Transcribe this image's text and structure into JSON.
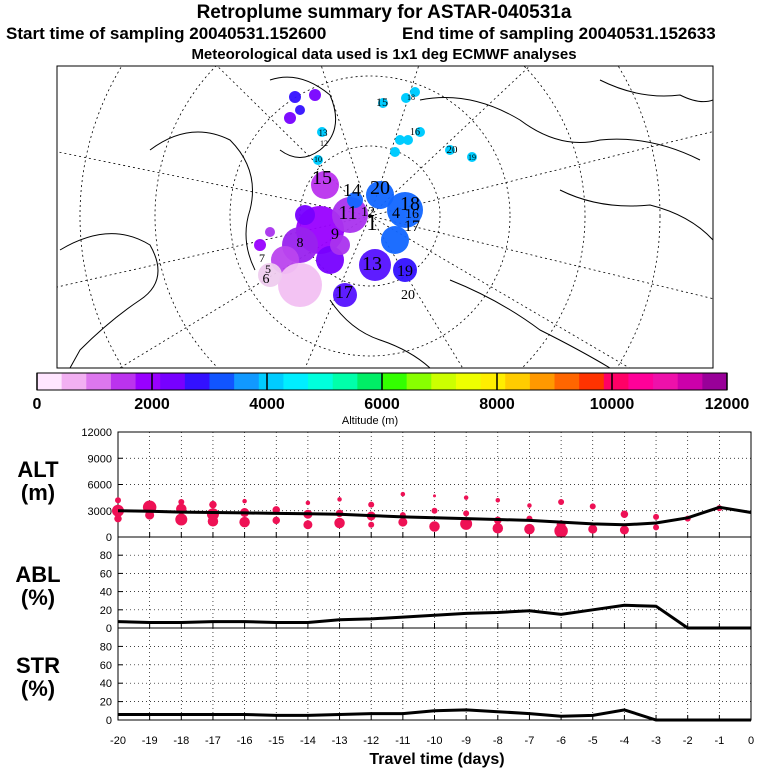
{
  "header": {
    "title": "Retroplume summary for ASTAR-040531a",
    "start_label": "Start time of sampling 20040531.152600",
    "end_label": "End time of sampling 20040531.152633",
    "met_label": "Meteorological data used is 1x1 deg ECMWF analyses"
  },
  "colorbar": {
    "label": "Altitude (m)",
    "ticks": [
      "0",
      "2000",
      "4000",
      "6000",
      "8000",
      "10000",
      "12000"
    ],
    "colors": [
      "#ffe6ff",
      "#f2b0f2",
      "#dd77ee",
      "#bb33ee",
      "#9900ff",
      "#7700ff",
      "#3311ff",
      "#1155ff",
      "#1199ff",
      "#00ccff",
      "#00eeff",
      "#00ffdd",
      "#00ffaa",
      "#00ee66",
      "#33ff00",
      "#88ff00",
      "#ccff00",
      "#eeff00",
      "#ffee00",
      "#ffcc00",
      "#ff9900",
      "#ff6600",
      "#ff3300",
      "#ff0066",
      "#ff0099",
      "#ee11aa",
      "#cc00aa",
      "#990099"
    ]
  },
  "map": {
    "labels": [
      {
        "t": "15",
        "c": "#cc33ee"
      },
      {
        "t": "14",
        "c": "#cc33ee"
      },
      {
        "t": "20",
        "c": "#1166ff"
      },
      {
        "t": "18",
        "c": "#1166ff"
      },
      {
        "t": "17",
        "c": "#1166ff"
      },
      {
        "t": "16",
        "c": "#bb44ee"
      },
      {
        "t": "11",
        "c": "#aa33ee"
      },
      {
        "t": "12",
        "c": "#1166ff"
      },
      {
        "t": "9",
        "c": "#aa33ee"
      },
      {
        "t": "8",
        "c": "#9922ee"
      },
      {
        "t": "7",
        "c": "#cc66ee"
      },
      {
        "t": "5",
        "c": "#ddaaee"
      },
      {
        "t": "6",
        "c": "#eeccee"
      },
      {
        "t": "13",
        "c": "#7700ff"
      },
      {
        "t": "17",
        "c": "#3311ff"
      },
      {
        "t": "19",
        "c": "#3311ff"
      },
      {
        "t": "20",
        "c": "#1166ff"
      },
      {
        "t": "15",
        "c": "#00ccff"
      },
      {
        "t": "18",
        "c": "#00ccff"
      },
      {
        "t": "16",
        "c": "#00ccff"
      },
      {
        "t": "20",
        "c": "#00ccff"
      },
      {
        "t": "19",
        "c": "#00ccff"
      },
      {
        "t": "13",
        "c": "#00ccff"
      },
      {
        "t": "12",
        "c": "#00ccff"
      },
      {
        "t": "10",
        "c": "#00ccff"
      },
      {
        "t": "4",
        "c": "#cc66ee"
      },
      {
        "t": "1",
        "c": "#cc66ee"
      }
    ]
  },
  "chart_data": [
    {
      "type": "scatter",
      "panel_label": "ALT",
      "panel_unit": "(m)",
      "ylim": [
        0,
        12000
      ],
      "yticks": [
        "0",
        "3000",
        "6000",
        "9000",
        "12000"
      ],
      "mean_line": {
        "x": [
          -20,
          -19,
          -18,
          -17,
          -16,
          -15,
          -14,
          -13,
          -12,
          -11,
          -10,
          -9,
          -8,
          -7,
          -6,
          -5,
          -4,
          -3,
          -2,
          -1,
          0
        ],
        "y": [
          3000,
          2950,
          2850,
          2800,
          2750,
          2700,
          2650,
          2600,
          2450,
          2300,
          2200,
          2100,
          2000,
          1900,
          1700,
          1500,
          1400,
          1600,
          2200,
          3400,
          2800
        ]
      },
      "points": [
        [
          -20,
          3000,
          8
        ],
        [
          -20,
          4200,
          4
        ],
        [
          -20,
          2100,
          5
        ],
        [
          -19,
          3400,
          9
        ],
        [
          -19,
          2500,
          6
        ],
        [
          -18,
          3200,
          7
        ],
        [
          -18,
          2000,
          8
        ],
        [
          -18,
          4000,
          4
        ],
        [
          -17,
          2600,
          8
        ],
        [
          -17,
          1800,
          7
        ],
        [
          -17,
          3700,
          5
        ],
        [
          -16,
          2800,
          6
        ],
        [
          -16,
          1700,
          7
        ],
        [
          -16,
          4100,
          3
        ],
        [
          -15,
          3100,
          5
        ],
        [
          -15,
          1900,
          5
        ],
        [
          -14,
          2600,
          6
        ],
        [
          -14,
          1400,
          6
        ],
        [
          -14,
          3900,
          3
        ],
        [
          -13,
          2700,
          5
        ],
        [
          -13,
          1600,
          7
        ],
        [
          -13,
          4300,
          3
        ],
        [
          -12,
          2400,
          6
        ],
        [
          -12,
          1400,
          4
        ],
        [
          -12,
          3700,
          4
        ],
        [
          -11,
          1700,
          6
        ],
        [
          -11,
          4900,
          3
        ],
        [
          -11,
          2500,
          4
        ],
        [
          -10,
          1200,
          7
        ],
        [
          -10,
          4700,
          2
        ],
        [
          -10,
          3000,
          4
        ],
        [
          -9,
          1500,
          8
        ],
        [
          -9,
          4500,
          3
        ],
        [
          -9,
          2700,
          4
        ],
        [
          -8,
          1000,
          7
        ],
        [
          -8,
          4200,
          3
        ],
        [
          -8,
          1900,
          5
        ],
        [
          -7,
          900,
          7
        ],
        [
          -7,
          3600,
          3
        ],
        [
          -7,
          2100,
          4
        ],
        [
          -6,
          700,
          9
        ],
        [
          -6,
          4000,
          4
        ],
        [
          -6,
          1400,
          6
        ],
        [
          -5,
          900,
          6
        ],
        [
          -5,
          3500,
          4
        ],
        [
          -4,
          800,
          6
        ],
        [
          -4,
          2600,
          5
        ],
        [
          -3,
          1100,
          4
        ],
        [
          -3,
          2300,
          4
        ],
        [
          -2,
          2100,
          4
        ],
        [
          -1,
          3300,
          4
        ]
      ],
      "point_color": "#ee1155"
    },
    {
      "type": "line",
      "panel_label": "ABL",
      "panel_unit": "(%)",
      "ylim": [
        0,
        100
      ],
      "yticks": [
        "0",
        "20",
        "40",
        "60",
        "80"
      ],
      "x": [
        -20,
        -19,
        -18,
        -17,
        -16,
        -15,
        -14,
        -13,
        -12,
        -11,
        -10,
        -9,
        -8,
        -7,
        -6,
        -5,
        -4,
        -3,
        -2,
        -1,
        0
      ],
      "y": [
        7,
        6,
        6,
        7,
        7,
        6,
        6,
        9,
        10,
        12,
        14,
        16,
        17,
        19,
        15,
        20,
        25,
        24,
        0,
        0,
        0
      ]
    },
    {
      "type": "line",
      "panel_label": "STR",
      "panel_unit": "(%)",
      "ylim": [
        0,
        100
      ],
      "yticks": [
        "0",
        "20",
        "40",
        "60",
        "80"
      ],
      "x": [
        -20,
        -19,
        -18,
        -17,
        -16,
        -15,
        -14,
        -13,
        -12,
        -11,
        -10,
        -9,
        -8,
        -7,
        -6,
        -5,
        -4,
        -3,
        -2,
        -1,
        0
      ],
      "y": [
        6,
        6,
        6,
        6,
        6,
        5,
        5,
        6,
        7,
        7,
        10,
        11,
        9,
        7,
        4,
        5,
        11,
        0,
        0,
        0,
        0
      ]
    }
  ],
  "xaxis": {
    "label": "Travel time (days)",
    "ticks": [
      "-20",
      "-19",
      "-18",
      "-17",
      "-16",
      "-15",
      "-14",
      "-13",
      "-12",
      "-11",
      "-10",
      "-9",
      "-8",
      "-7",
      "-6",
      "-5",
      "-4",
      "-3",
      "-2",
      "-1",
      "0"
    ]
  }
}
